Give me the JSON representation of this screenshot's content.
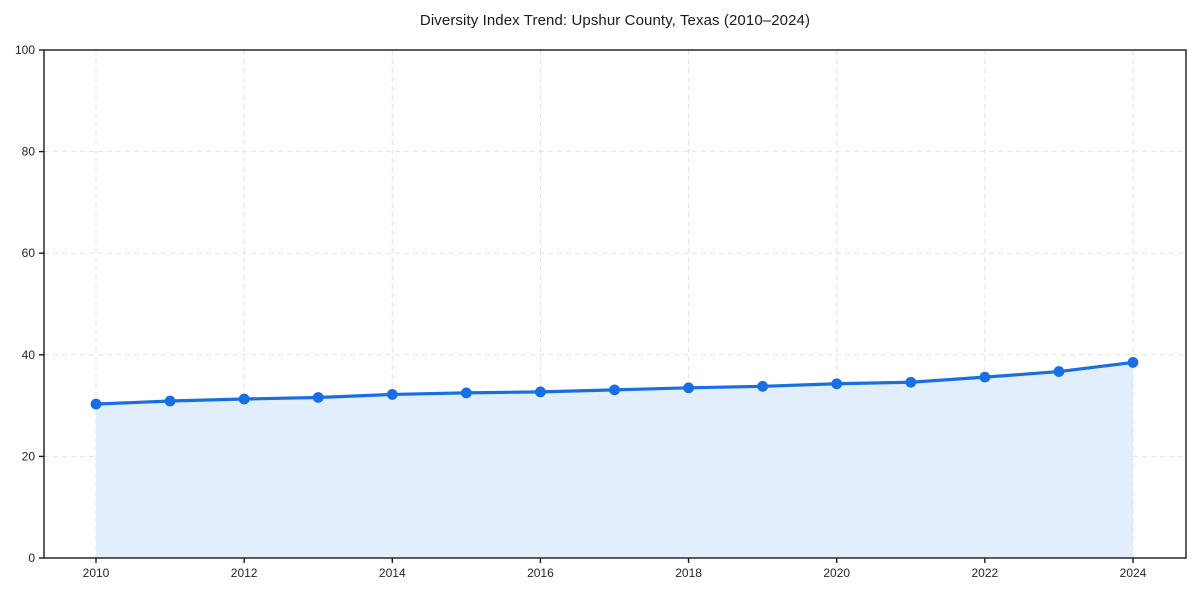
{
  "page": {
    "background": "#ffffff"
  },
  "chart_data": {
    "type": "area",
    "title": "Diversity Index Trend: Upshur County, Texas (2010–2024)",
    "x": [
      2010,
      2011,
      2012,
      2013,
      2014,
      2015,
      2016,
      2017,
      2018,
      2019,
      2020,
      2021,
      2022,
      2023,
      2024
    ],
    "series": [
      {
        "name": "Diversity Index",
        "values": [
          30.3,
          30.9,
          31.3,
          31.6,
          32.2,
          32.5,
          32.7,
          33.1,
          33.5,
          33.8,
          34.3,
          34.6,
          35.6,
          36.7,
          38.5
        ]
      }
    ],
    "xlabel": "",
    "ylabel": "",
    "ylim": [
      0,
      100
    ],
    "xticks": [
      2010,
      2012,
      2014,
      2016,
      2018,
      2020,
      2022,
      2024
    ],
    "yticks": [
      0,
      20,
      40,
      60,
      80,
      100
    ],
    "grid": "dashed-both",
    "legend": "none",
    "line_color": "#1a6ee4",
    "fill_color": "#e3eefc",
    "grid_color": "#e2e2e2",
    "spine_color": "#1a1a1a",
    "tick_label_color": "#262626",
    "marker": "circle"
  }
}
